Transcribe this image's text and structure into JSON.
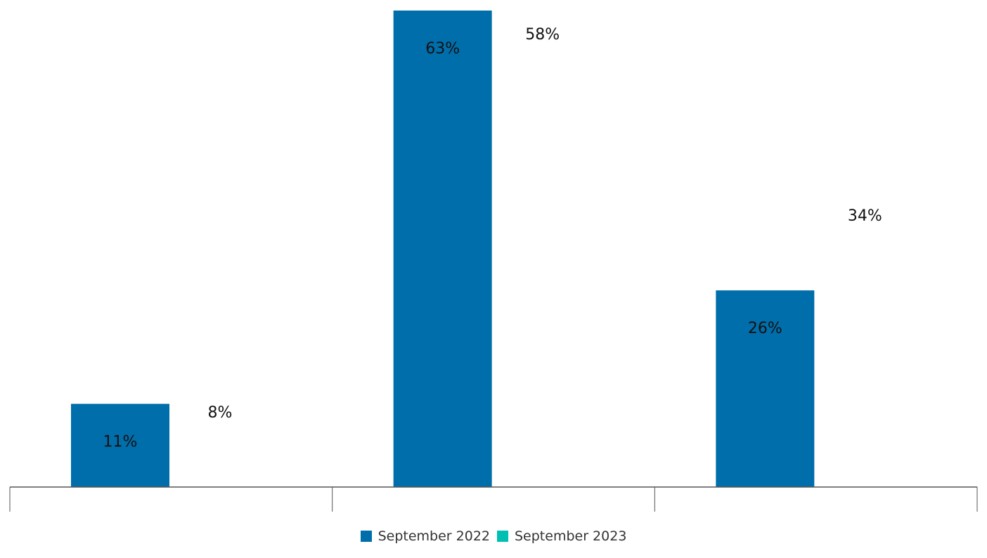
{
  "chart_data": {
    "type": "bar",
    "categories": [
      "",
      "",
      ""
    ],
    "series": [
      {
        "name": "September 2022",
        "color": "#006eab",
        "values": [
          11,
          63,
          26
        ],
        "labels": [
          "11%",
          "63%",
          "26%"
        ]
      },
      {
        "name": "September 2023",
        "color": "#00bfb3",
        "values": [
          8,
          58,
          34
        ],
        "labels": [
          "8%",
          "58%",
          "34%"
        ]
      }
    ],
    "ylim": [
      0,
      63
    ],
    "grid": false,
    "legend_position": "bottom-center",
    "title": "",
    "xlabel": "",
    "ylabel": ""
  }
}
